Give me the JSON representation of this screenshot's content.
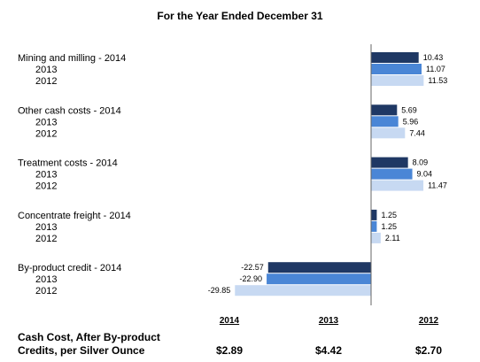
{
  "title": "For the Year Ended December 31",
  "chart_data": {
    "type": "bar",
    "orientation": "horizontal",
    "title": "For the Year Ended December 31",
    "categories": [
      {
        "label": "Mining and milling",
        "years": [
          "2014",
          "2013",
          "2012"
        ],
        "values": [
          10.43,
          11.07,
          11.53
        ],
        "value_labels": [
          "10.43",
          "11.07",
          "11.53"
        ]
      },
      {
        "label": "Other cash costs",
        "years": [
          "2014",
          "2013",
          "2012"
        ],
        "values": [
          5.69,
          5.96,
          7.44
        ],
        "value_labels": [
          "5.69",
          "5.96",
          "7.44"
        ]
      },
      {
        "label": "Treatment costs",
        "years": [
          "2014",
          "2013",
          "2012"
        ],
        "values": [
          8.09,
          9.04,
          11.47
        ],
        "value_labels": [
          "8.09",
          "9.04",
          "11.47"
        ]
      },
      {
        "label": "Concentrate freight",
        "years": [
          "2014",
          "2013",
          "2012"
        ],
        "values": [
          1.25,
          1.25,
          2.11
        ],
        "value_labels": [
          "1.25",
          "1.25",
          "2.11"
        ]
      },
      {
        "label": "By-product credit",
        "years": [
          "2014",
          "2013",
          "2012"
        ],
        "values": [
          -22.57,
          -22.9,
          -29.85
        ],
        "value_labels": [
          "-22.57",
          "-22.90",
          "-29.85"
        ]
      }
    ],
    "series_colors": {
      "2014": "#1f3864",
      "2013": "#4a86d6",
      "2012": "#c7d9f2"
    },
    "xlim": [
      -32,
      13
    ],
    "grid": false,
    "legend": "none"
  },
  "footer": {
    "label_line1": "Cash Cost, After By-product",
    "label_line2": "Credits, per Silver Ounce",
    "columns": [
      {
        "year": "2014",
        "value": "$2.89"
      },
      {
        "year": "2013",
        "value": "$4.42"
      },
      {
        "year": "2012",
        "value": "$2.70"
      }
    ]
  }
}
